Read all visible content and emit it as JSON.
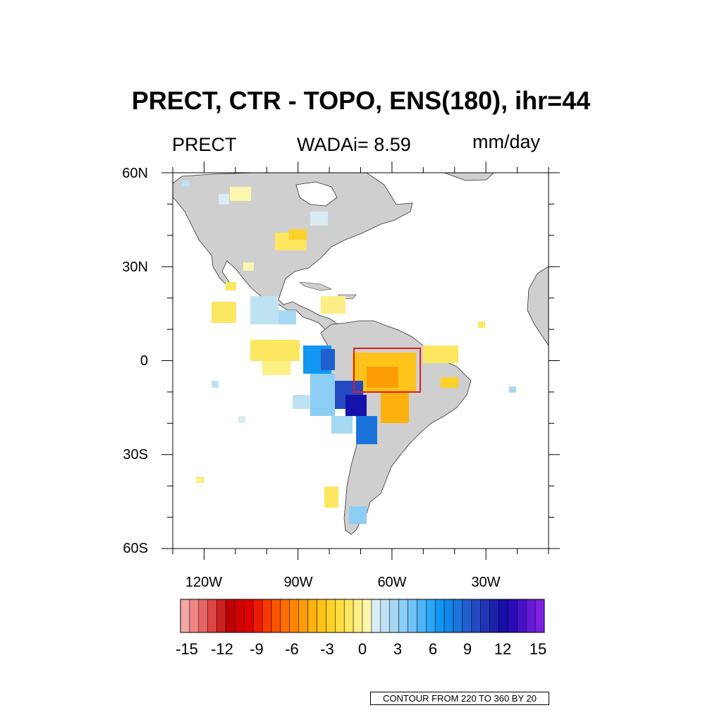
{
  "title": "PRECT, CTR - TOPO, ENS(180), ihr=44",
  "left_string": "PRECT",
  "center_string": "WADAi= 8.59",
  "right_string": "mm/day",
  "lat_labels": [
    "60N",
    "30N",
    "0",
    "30S",
    "60S"
  ],
  "lon_labels": [
    "120W",
    "90W",
    "60W",
    "30W"
  ],
  "colorbar": {
    "tick_labels": [
      "-15",
      "-12",
      "-9",
      "-6",
      "-3",
      "0",
      "3",
      "6",
      "9",
      "12",
      "15"
    ],
    "min": -15,
    "max": 15,
    "step": 1,
    "colors": [
      "#f4a6a6",
      "#ee8686",
      "#e66565",
      "#dd4444",
      "#cc1f1f",
      "#c00000",
      "#d20000",
      "#e00000",
      "#ee1a00",
      "#f83800",
      "#fb5400",
      "#fd6e00",
      "#fd8800",
      "#fd9d05",
      "#fdb10e",
      "#fdc31a",
      "#fdd12a",
      "#fddc3e",
      "#fde660",
      "#fdef85",
      "#fdf7ae",
      "#d8ecf3",
      "#bfe2f3",
      "#a6d8f4",
      "#8ccdf5",
      "#6fc2f6",
      "#4db4f6",
      "#2aa6f5",
      "#1197f1",
      "#0f86e8",
      "#1a74dc",
      "#215fcf",
      "#2549c2",
      "#2234b6",
      "#1c22ac",
      "#1411aa",
      "#2a0cb6",
      "#4712c6",
      "#6419d6",
      "#7e1fe6"
    ]
  },
  "map": {
    "lon_range": [
      -130,
      -10
    ],
    "lat_range": [
      -60,
      60
    ],
    "ocean_color": "#ffffff",
    "land_color": "#cfcfcf",
    "box": {
      "lon": [
        -72,
        -51
      ],
      "lat": [
        -10,
        4
      ],
      "color": "#e41a1c"
    }
  },
  "contour_note": "CONTOUR FROM 220 TO 360 BY 20"
}
